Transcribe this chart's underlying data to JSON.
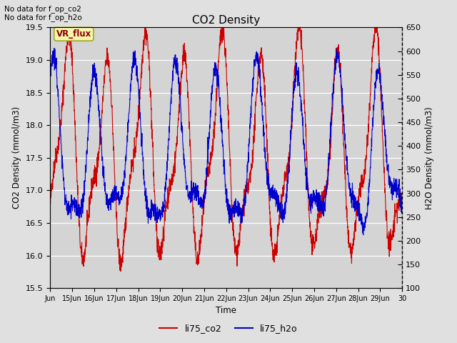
{
  "title": "CO2 Density",
  "xlabel": "Time",
  "ylabel_left": "CO2 Density (mmol/m3)",
  "ylabel_right": "H2O Density (mmol/m3)",
  "note_line1": "No data for f_op_co2",
  "note_line2": "No data for f_op_h2o",
  "vr_flux_label": "VR_flux",
  "ylim_left": [
    15.5,
    19.5
  ],
  "ylim_right": [
    100,
    650
  ],
  "xlim": [
    14,
    30
  ],
  "legend_entries": [
    "li75_co2",
    "li75_h2o"
  ],
  "co2_color": "#cc0000",
  "h2o_color": "#0000cc",
  "fig_bg": "#e0e0e0",
  "plot_bg": "#d4d4d4",
  "grid_color": "#ffffff",
  "seed": 42
}
